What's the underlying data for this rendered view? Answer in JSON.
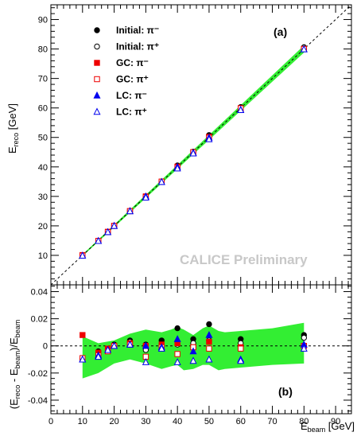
{
  "chart_data": [
    {
      "type": "scatter",
      "panel_label": "(a)",
      "ylabel": "E_reco [GeV]",
      "ylabel_main": "E",
      "ylabel_sub": "reco",
      "ylabel_unit": " [GeV]",
      "annotation": "CALICE Preliminary",
      "xlim": [
        0,
        95
      ],
      "ylim": [
        0,
        95
      ],
      "x_ticks": [
        0,
        10,
        20,
        30,
        40,
        50,
        60,
        70,
        80,
        90
      ],
      "y_ticks": [
        10,
        20,
        30,
        40,
        50,
        60,
        70,
        80,
        90
      ],
      "legend_position": "top-left",
      "reference_line": "y = x (dashed)",
      "band_color": "#33ee33",
      "series": [
        {
          "name": "Initial: π⁻",
          "marker": "filled-circle",
          "color": "#000000",
          "x": [
            10,
            15,
            18,
            20,
            25,
            30,
            35,
            40,
            45,
            50,
            60,
            80
          ],
          "y": [
            9.9,
            14.9,
            17.9,
            20.0,
            25.1,
            30.0,
            35.1,
            40.5,
            45.2,
            50.8,
            60.3,
            80.6
          ]
        },
        {
          "name": "Initial: π⁺",
          "marker": "open-circle",
          "color": "#000000",
          "x": [
            10,
            15,
            18,
            20,
            25,
            30,
            35,
            40,
            45,
            50,
            60,
            80
          ],
          "y": [
            9.9,
            14.9,
            17.9,
            20.0,
            25.0,
            29.9,
            35.0,
            40.0,
            45.1,
            50.2,
            60.1,
            80.5
          ]
        },
        {
          "name": "GC: π⁻",
          "marker": "filled-square",
          "color": "#ee0000",
          "x": [
            10,
            15,
            18,
            20,
            25,
            30,
            35,
            40,
            45,
            50,
            60,
            80
          ],
          "y": [
            10.1,
            14.9,
            18.0,
            20.0,
            25.0,
            30.0,
            35.0,
            40.1,
            45.0,
            50.2,
            59.9,
            80.0
          ]
        },
        {
          "name": "GC: π⁺",
          "marker": "open-square",
          "color": "#ee0000",
          "x": [
            10,
            15,
            18,
            20,
            25,
            30,
            35,
            40,
            45,
            50,
            60,
            80
          ],
          "y": [
            9.9,
            14.9,
            17.9,
            20.0,
            25.0,
            29.8,
            35.0,
            39.8,
            45.0,
            49.9,
            59.9,
            80.0
          ]
        },
        {
          "name": "LC: π⁻",
          "marker": "filled-triangle",
          "color": "#0000ee",
          "x": [
            10,
            15,
            18,
            20,
            25,
            30,
            35,
            40,
            45,
            50,
            60,
            80
          ],
          "y": [
            9.9,
            14.9,
            17.9,
            20.0,
            25.0,
            30.0,
            34.9,
            40.0,
            44.8,
            49.9,
            59.4,
            79.9
          ]
        },
        {
          "name": "LC: π⁺",
          "marker": "open-triangle",
          "color": "#0000ee",
          "x": [
            10,
            15,
            18,
            20,
            25,
            30,
            35,
            40,
            45,
            50,
            60,
            80
          ],
          "y": [
            9.9,
            14.9,
            17.9,
            20.0,
            25.0,
            29.6,
            34.9,
            39.5,
            44.6,
            49.4,
            59.3,
            79.9
          ]
        }
      ],
      "band": {
        "x": [
          10,
          80
        ],
        "lower": [
          9.7,
          78.8
        ],
        "upper": [
          10.3,
          81.2
        ]
      }
    },
    {
      "type": "scatter",
      "panel_label": "(b)",
      "ylabel": "(E_reco - E_beam)/E_beam",
      "xlabel": "E_beam [GeV]",
      "xlabel_main": "E",
      "xlabel_sub": "beam",
      "xlabel_unit": " [GeV]",
      "xlim": [
        0,
        95
      ],
      "ylim": [
        -0.05,
        0.045
      ],
      "x_ticks": [
        0,
        10,
        20,
        30,
        40,
        50,
        60,
        70,
        80,
        90
      ],
      "y_ticks": [
        -0.04,
        -0.02,
        0,
        0.02,
        0.04
      ],
      "y_tick_labels": [
        "-0.04",
        "-0.02",
        "0",
        "0.02",
        "0.04"
      ],
      "reference_line": "y = 0 (dashed)",
      "band": {
        "x": [
          10,
          15,
          20,
          25,
          30,
          35,
          38,
          40,
          42,
          45,
          48,
          50,
          53,
          55,
          60,
          70,
          80
        ],
        "upper": [
          0.007,
          0.002,
          0.004,
          0.009,
          0.012,
          0.01,
          0.012,
          0.014,
          0.012,
          0.008,
          0.013,
          0.015,
          0.011,
          0.01,
          0.011,
          0.013,
          0.017
        ],
        "lower": [
          -0.024,
          -0.02,
          -0.013,
          -0.01,
          -0.013,
          -0.017,
          -0.015,
          -0.014,
          -0.018,
          -0.017,
          -0.014,
          -0.014,
          -0.018,
          -0.017,
          -0.016,
          -0.014,
          -0.013
        ]
      },
      "series": [
        {
          "name": "Initial: π⁻",
          "marker": "filled-circle",
          "color": "#000000",
          "x": [
            10,
            15,
            18,
            20,
            25,
            30,
            35,
            40,
            45,
            50,
            60,
            80
          ],
          "y": [
            -0.01,
            -0.004,
            -0.003,
            0.001,
            0.004,
            0.001,
            0.004,
            0.013,
            0.005,
            0.016,
            0.005,
            0.008
          ]
        },
        {
          "name": "Initial: π⁺",
          "marker": "open-circle",
          "color": "#000000",
          "x": [
            10,
            15,
            18,
            20,
            25,
            30,
            35,
            40,
            45,
            50,
            60,
            80
          ],
          "y": [
            -0.01,
            -0.006,
            -0.003,
            0.0,
            0.003,
            -0.003,
            0.001,
            0.001,
            0.002,
            0.004,
            0.002,
            0.006
          ]
        },
        {
          "name": "GC: π⁻",
          "marker": "filled-square",
          "color": "#ee0000",
          "x": [
            10,
            15,
            18,
            20,
            25,
            30,
            35,
            40,
            45,
            50,
            60,
            80
          ],
          "y": [
            0.008,
            -0.005,
            -0.002,
            0.0,
            0.002,
            0.0,
            0.001,
            0.002,
            -0.001,
            0.003,
            -0.001,
            0.0
          ]
        },
        {
          "name": "GC: π⁺",
          "marker": "open-square",
          "color": "#ee0000",
          "x": [
            10,
            15,
            18,
            20,
            25,
            30,
            35,
            40,
            45,
            50,
            60,
            80
          ],
          "y": [
            -0.009,
            -0.007,
            -0.004,
            0.0,
            0.001,
            -0.008,
            -0.001,
            -0.006,
            -0.001,
            -0.002,
            -0.002,
            0.0
          ]
        },
        {
          "name": "LC: π⁻",
          "marker": "filled-triangle",
          "color": "#0000ee",
          "x": [
            10,
            15,
            18,
            20,
            25,
            30,
            35,
            40,
            45,
            50,
            60,
            80
          ],
          "y": [
            -0.01,
            -0.007,
            -0.003,
            0.0,
            0.001,
            0.0,
            -0.001,
            0.005,
            -0.004,
            0.008,
            -0.01,
            0.001
          ]
        },
        {
          "name": "LC: π⁺",
          "marker": "open-triangle",
          "color": "#0000ee",
          "x": [
            10,
            15,
            18,
            20,
            25,
            30,
            35,
            40,
            45,
            50,
            60,
            80
          ],
          "y": [
            -0.01,
            -0.008,
            -0.003,
            0.0,
            0.001,
            -0.012,
            -0.002,
            -0.012,
            -0.011,
            -0.01,
            -0.011,
            -0.002
          ]
        }
      ]
    }
  ]
}
